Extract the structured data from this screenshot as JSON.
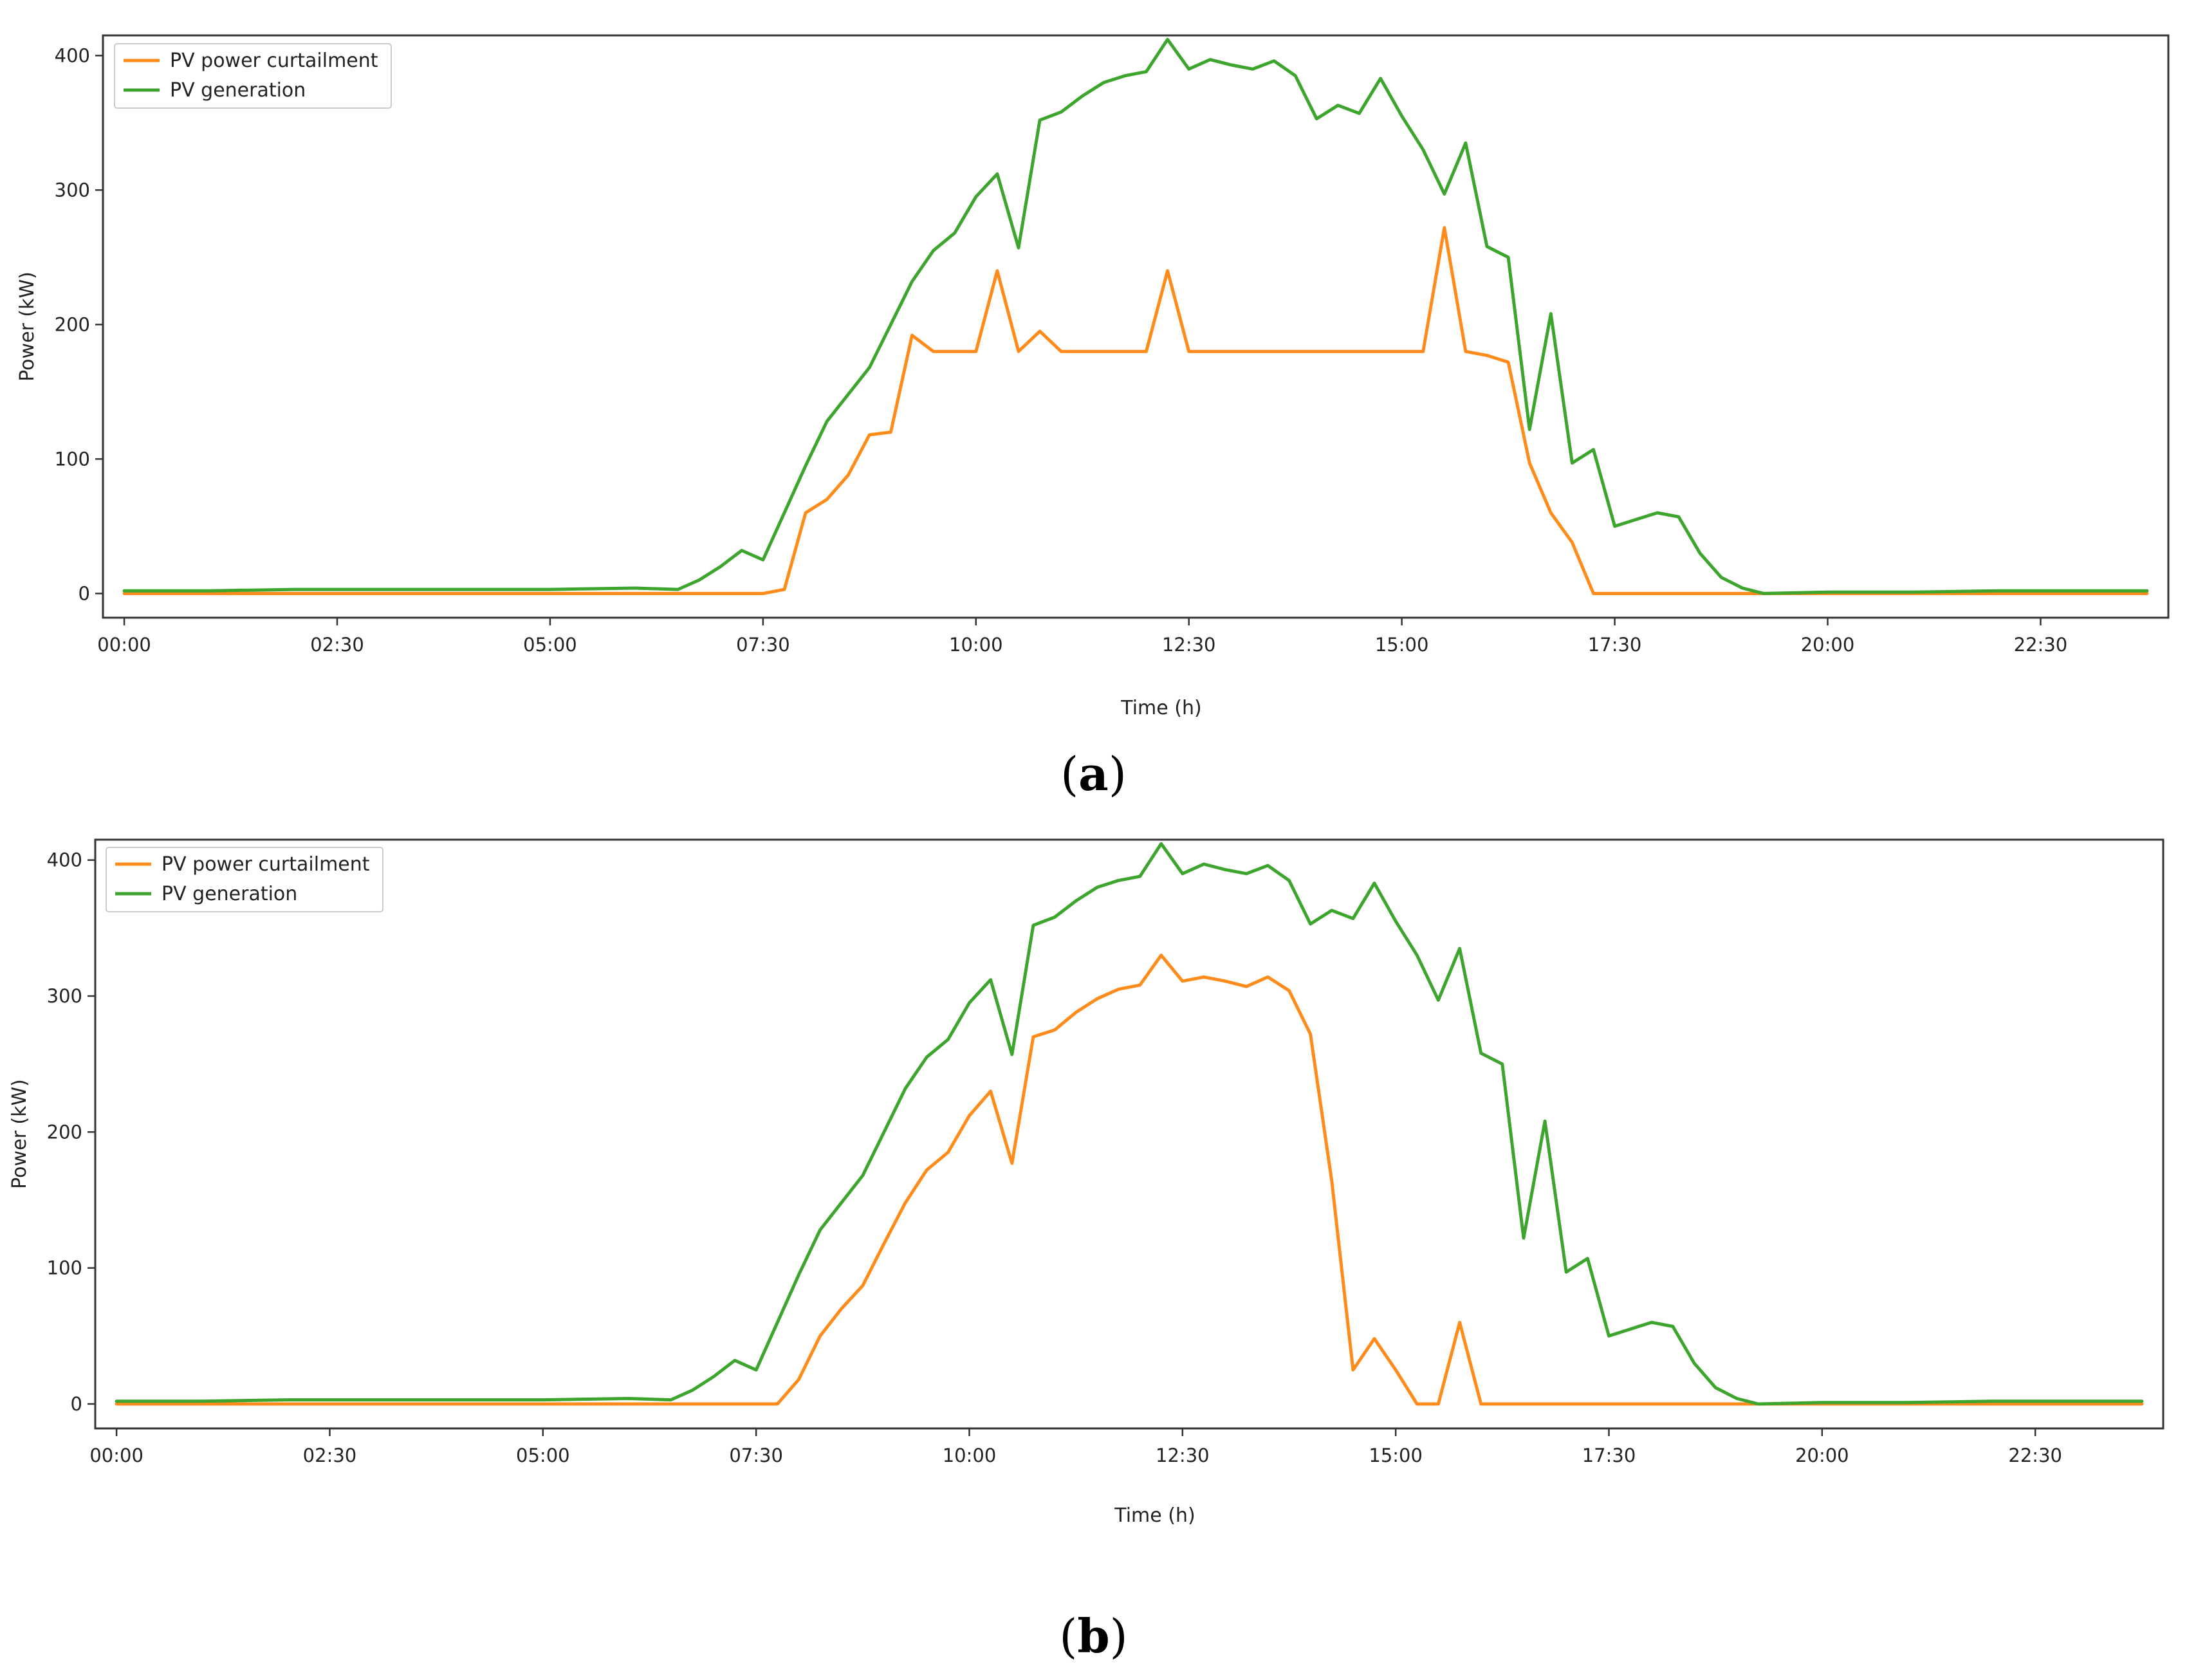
{
  "colors": {
    "curtailment": "#ff8c1a",
    "generation": "#3da52e"
  },
  "chart_data": [
    {
      "id": "a",
      "type": "line",
      "panel_label_open": "(",
      "panel_label_letter": "a",
      "panel_label_close": ")",
      "xlabel": "Time (h)",
      "ylabel": "Power (kW)",
      "xlim": [
        -0.25,
        24
      ],
      "ylim": [
        -18,
        415
      ],
      "xticks": [
        {
          "value": 0,
          "label": "00:00"
        },
        {
          "value": 2.5,
          "label": "02:30"
        },
        {
          "value": 5,
          "label": "05:00"
        },
        {
          "value": 7.5,
          "label": "07:30"
        },
        {
          "value": 10,
          "label": "10:00"
        },
        {
          "value": 12.5,
          "label": "12:30"
        },
        {
          "value": 15,
          "label": "15:00"
        },
        {
          "value": 17.5,
          "label": "17:30"
        },
        {
          "value": 20,
          "label": "20:00"
        },
        {
          "value": 22.5,
          "label": "22:30"
        }
      ],
      "yticks": [
        {
          "value": 0,
          "label": "0"
        },
        {
          "value": 100,
          "label": "100"
        },
        {
          "value": 200,
          "label": "200"
        },
        {
          "value": 300,
          "label": "300"
        },
        {
          "value": 400,
          "label": "400"
        }
      ],
      "legend_position": "upper-left",
      "series": [
        {
          "name": "PV power curtailment",
          "color_key": "curtailment",
          "x": [
            0,
            6.5,
            7.5,
            7.75,
            8.0,
            8.25,
            8.5,
            8.75,
            9.0,
            9.25,
            9.5,
            9.75,
            10.0,
            10.25,
            10.5,
            10.75,
            11.0,
            11.25,
            11.5,
            11.75,
            12.0,
            12.25,
            12.5,
            12.75,
            13.0,
            13.25,
            13.5,
            13.75,
            14.0,
            14.25,
            14.5,
            14.75,
            15.0,
            15.25,
            15.5,
            15.75,
            16.0,
            16.25,
            16.5,
            16.75,
            17.0,
            17.25,
            19.0,
            23.75
          ],
          "y": [
            0,
            0,
            0,
            3,
            60,
            70,
            88,
            118,
            120,
            192,
            180,
            180,
            180,
            240,
            180,
            195,
            180,
            180,
            180,
            180,
            180,
            240,
            180,
            180,
            180,
            180,
            180,
            180,
            180,
            180,
            180,
            180,
            180,
            180,
            272,
            180,
            177,
            172,
            97,
            60,
            38,
            0,
            0,
            0
          ]
        },
        {
          "name": "PV generation",
          "color_key": "generation",
          "x": [
            0,
            1,
            2,
            3,
            4,
            5,
            6,
            6.5,
            6.75,
            7.0,
            7.25,
            7.5,
            7.75,
            8.0,
            8.25,
            8.5,
            8.75,
            9.0,
            9.25,
            9.5,
            9.75,
            10.0,
            10.25,
            10.5,
            10.75,
            11.0,
            11.25,
            11.5,
            11.75,
            12.0,
            12.25,
            12.5,
            12.75,
            13.0,
            13.25,
            13.5,
            13.75,
            14.0,
            14.25,
            14.5,
            14.75,
            15.0,
            15.25,
            15.5,
            15.75,
            16.0,
            16.25,
            16.5,
            16.75,
            17.0,
            17.25,
            17.5,
            17.75,
            18.0,
            18.25,
            18.5,
            18.75,
            19.0,
            19.25,
            20.0,
            21.0,
            22.0,
            23.0,
            23.75
          ],
          "y": [
            2,
            2,
            3,
            3,
            3,
            3,
            4,
            3,
            10,
            20,
            32,
            25,
            60,
            95,
            128,
            148,
            168,
            200,
            232,
            255,
            268,
            295,
            312,
            257,
            352,
            358,
            370,
            380,
            385,
            388,
            412,
            390,
            397,
            393,
            390,
            396,
            385,
            353,
            363,
            357,
            383,
            355,
            330,
            297,
            335,
            258,
            250,
            122,
            208,
            97,
            107,
            50,
            55,
            60,
            57,
            30,
            12,
            4,
            0,
            1,
            1,
            2,
            2,
            2
          ]
        }
      ]
    },
    {
      "id": "b",
      "type": "line",
      "panel_label_open": "(",
      "panel_label_letter": "b",
      "panel_label_close": ")",
      "xlabel": "Time (h)",
      "ylabel": "Power (kW)",
      "xlim": [
        -0.25,
        24
      ],
      "ylim": [
        -18,
        415
      ],
      "xticks": [
        {
          "value": 0,
          "label": "00:00"
        },
        {
          "value": 2.5,
          "label": "02:30"
        },
        {
          "value": 5,
          "label": "05:00"
        },
        {
          "value": 7.5,
          "label": "07:30"
        },
        {
          "value": 10,
          "label": "10:00"
        },
        {
          "value": 12.5,
          "label": "12:30"
        },
        {
          "value": 15,
          "label": "15:00"
        },
        {
          "value": 17.5,
          "label": "17:30"
        },
        {
          "value": 20,
          "label": "20:00"
        },
        {
          "value": 22.5,
          "label": "22:30"
        }
      ],
      "yticks": [
        {
          "value": 0,
          "label": "0"
        },
        {
          "value": 100,
          "label": "100"
        },
        {
          "value": 200,
          "label": "200"
        },
        {
          "value": 300,
          "label": "300"
        },
        {
          "value": 400,
          "label": "400"
        }
      ],
      "legend_position": "upper-left",
      "series": [
        {
          "name": "PV power curtailment",
          "color_key": "curtailment",
          "x": [
            0,
            6.5,
            7.5,
            7.75,
            8.0,
            8.25,
            8.5,
            8.75,
            9.0,
            9.25,
            9.5,
            9.75,
            10.0,
            10.25,
            10.5,
            10.75,
            11.0,
            11.25,
            11.5,
            11.75,
            12.0,
            12.25,
            12.5,
            12.75,
            13.0,
            13.25,
            13.5,
            13.75,
            14.0,
            14.25,
            14.5,
            14.75,
            15.0,
            15.25,
            15.5,
            15.75,
            16.0,
            16.25,
            19.0,
            23.75
          ],
          "y": [
            0,
            0,
            0,
            0,
            18,
            50,
            70,
            87,
            118,
            148,
            172,
            185,
            212,
            230,
            177,
            270,
            275,
            288,
            298,
            305,
            308,
            330,
            311,
            314,
            311,
            307,
            314,
            304,
            272,
            164,
            25,
            48,
            25,
            0,
            0,
            60,
            0,
            0,
            0,
            0
          ]
        },
        {
          "name": "PV generation",
          "color_key": "generation",
          "x": [
            0,
            1,
            2,
            3,
            4,
            5,
            6,
            6.5,
            6.75,
            7.0,
            7.25,
            7.5,
            7.75,
            8.0,
            8.25,
            8.5,
            8.75,
            9.0,
            9.25,
            9.5,
            9.75,
            10.0,
            10.25,
            10.5,
            10.75,
            11.0,
            11.25,
            11.5,
            11.75,
            12.0,
            12.25,
            12.5,
            12.75,
            13.0,
            13.25,
            13.5,
            13.75,
            14.0,
            14.25,
            14.5,
            14.75,
            15.0,
            15.25,
            15.5,
            15.75,
            16.0,
            16.25,
            16.5,
            16.75,
            17.0,
            17.25,
            17.5,
            17.75,
            18.0,
            18.25,
            18.5,
            18.75,
            19.0,
            19.25,
            20.0,
            21.0,
            22.0,
            23.0,
            23.75
          ],
          "y": [
            2,
            2,
            3,
            3,
            3,
            3,
            4,
            3,
            10,
            20,
            32,
            25,
            60,
            95,
            128,
            148,
            168,
            200,
            232,
            255,
            268,
            295,
            312,
            257,
            352,
            358,
            370,
            380,
            385,
            388,
            412,
            390,
            397,
            393,
            390,
            396,
            385,
            353,
            363,
            357,
            383,
            355,
            330,
            297,
            335,
            258,
            250,
            122,
            208,
            97,
            107,
            50,
            55,
            60,
            57,
            30,
            12,
            4,
            0,
            1,
            1,
            2,
            2,
            2
          ]
        }
      ]
    }
  ]
}
